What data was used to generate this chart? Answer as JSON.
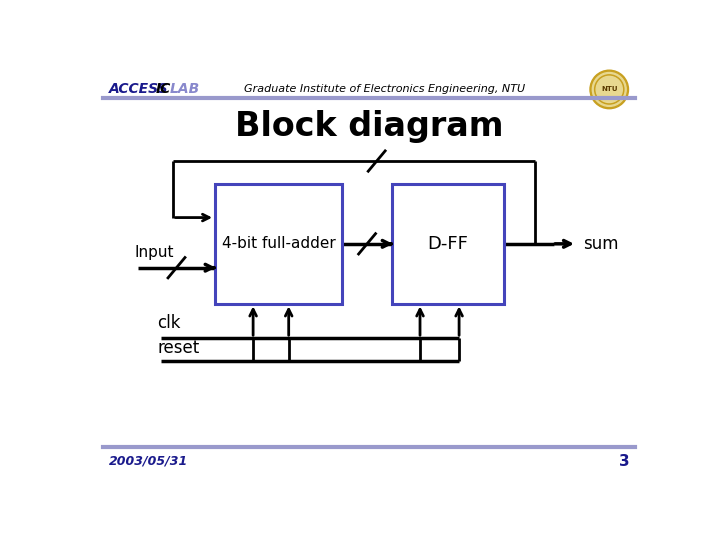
{
  "title": "Block diagram",
  "header_sub": "Graduate Institute of Electronics Engineering, NTU",
  "footer_date": "2003/05/31",
  "footer_page": "3",
  "box1_label": "4-bit full-adder",
  "box2_label": "D-FF",
  "input_label": "Input",
  "output_label": "sum",
  "clk_label": "clk",
  "reset_label": "reset",
  "box_color": "#4444bb",
  "line_color": "#000000",
  "header_line_color": "#9999cc",
  "bg_color": "#ffffff",
  "title_color": "#000000",
  "access_color": "#1a1a8c",
  "ic_color": "#000000",
  "lab_color": "#8888cc",
  "footer_color": "#1a1a8c"
}
